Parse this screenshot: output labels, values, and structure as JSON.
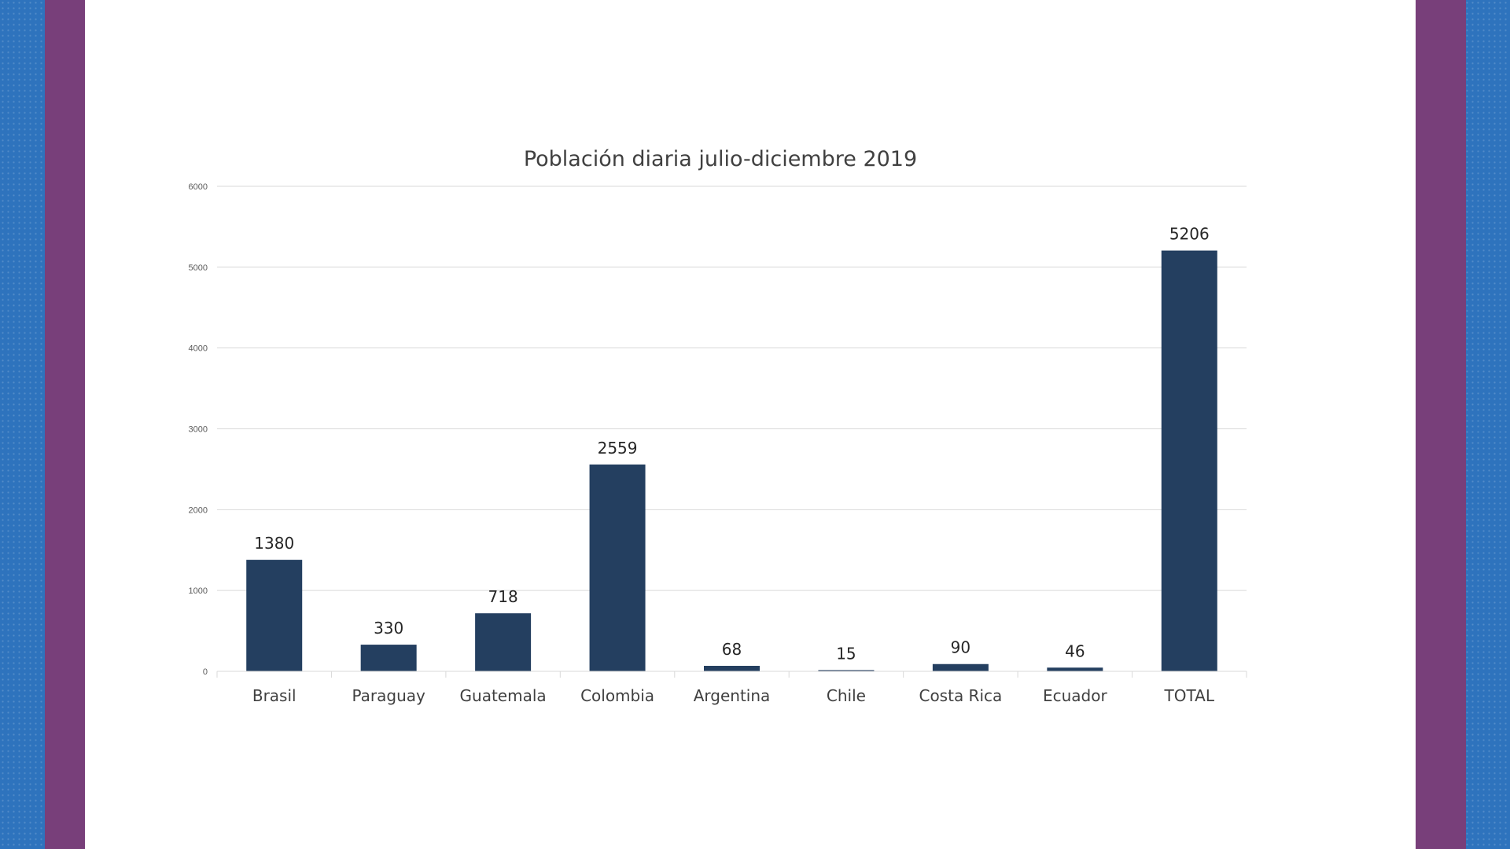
{
  "colors": {
    "background": "#2e73bd",
    "band": "#783f7a",
    "slide": "#ffffff",
    "bar": "#243f60",
    "gridline": "#d9d9d9"
  },
  "chart_data": {
    "type": "bar",
    "title": "Población diaria julio-diciembre 2019",
    "xlabel": "",
    "ylabel": "",
    "ylim": [
      0,
      6000
    ],
    "yticks": [
      0,
      1000,
      2000,
      3000,
      4000,
      5000,
      6000
    ],
    "grid": true,
    "legend": "none",
    "categories": [
      "Brasil",
      "Paraguay",
      "Guatemala",
      "Colombia",
      "Argentina",
      "Chile",
      "Costa Rica",
      "Ecuador",
      "TOTAL"
    ],
    "values": [
      1380,
      330,
      718,
      2559,
      68,
      15,
      90,
      46,
      5206
    ]
  }
}
